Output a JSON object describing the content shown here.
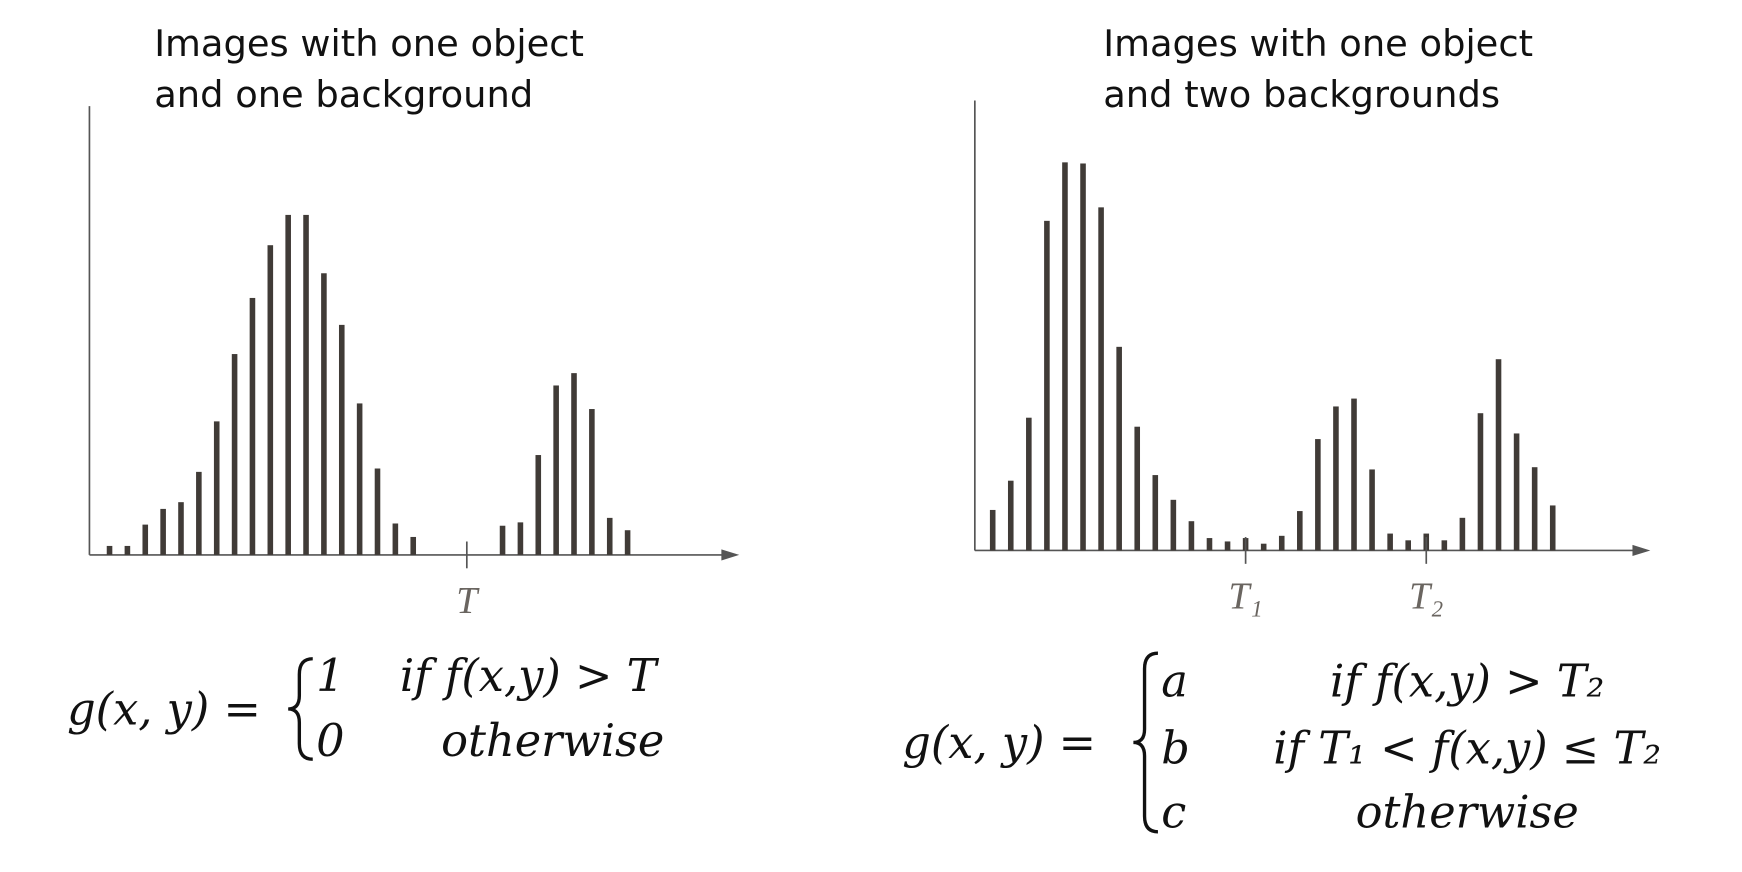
{
  "chart_data": [
    {
      "type": "bar",
      "title": [
        "Images with one object",
        "and one background"
      ],
      "categories": [
        null,
        null,
        null,
        null,
        null,
        null,
        null,
        null,
        null,
        null,
        null,
        null,
        null,
        null,
        null,
        null,
        null,
        null,
        null,
        null,
        "T",
        null,
        null,
        null,
        null,
        null,
        null,
        null,
        null,
        null
      ],
      "values": [
        8,
        8,
        27,
        41,
        47,
        74,
        119,
        179,
        229,
        276,
        303,
        303,
        251,
        205,
        135,
        77,
        28,
        16,
        null,
        null,
        null,
        null,
        26,
        29,
        89,
        151,
        162,
        130,
        33,
        22
      ],
      "color": "#403b37",
      "ylim": [
        0,
        400
      ],
      "equation": {
        "lhs": "g(x, y) =",
        "cases": [
          {
            "value": "1",
            "condition": "if f(x,y) > T"
          },
          {
            "value": "0",
            "condition": "otherwise"
          }
        ]
      }
    },
    {
      "type": "bar",
      "title": [
        "Images with one object",
        "and two backgrounds"
      ],
      "categories": [
        null,
        null,
        null,
        null,
        null,
        null,
        null,
        null,
        null,
        null,
        null,
        null,
        null,
        null,
        "T₁",
        null,
        null,
        null,
        null,
        null,
        null,
        null,
        null,
        null,
        "T₂",
        null,
        null,
        null,
        null,
        null,
        null,
        null
      ],
      "values": [
        36,
        62,
        118,
        293,
        345,
        344,
        305,
        181,
        110,
        67,
        45,
        26,
        11,
        8,
        11,
        6,
        13,
        35,
        99,
        128,
        135,
        72,
        15,
        9,
        15,
        9,
        29,
        122,
        170,
        104,
        74,
        40
      ],
      "color": "#403b37",
      "ylim": [
        0,
        400
      ],
      "equation": {
        "lhs": "g(x, y) =",
        "cases": [
          {
            "value": "a",
            "condition": "if f(x,y) > T₂"
          },
          {
            "value": "b",
            "condition": "if T₁ < f(x,y) ≤ T₂"
          },
          {
            "value": "c",
            "condition": "otherwise"
          }
        ]
      }
    }
  ]
}
